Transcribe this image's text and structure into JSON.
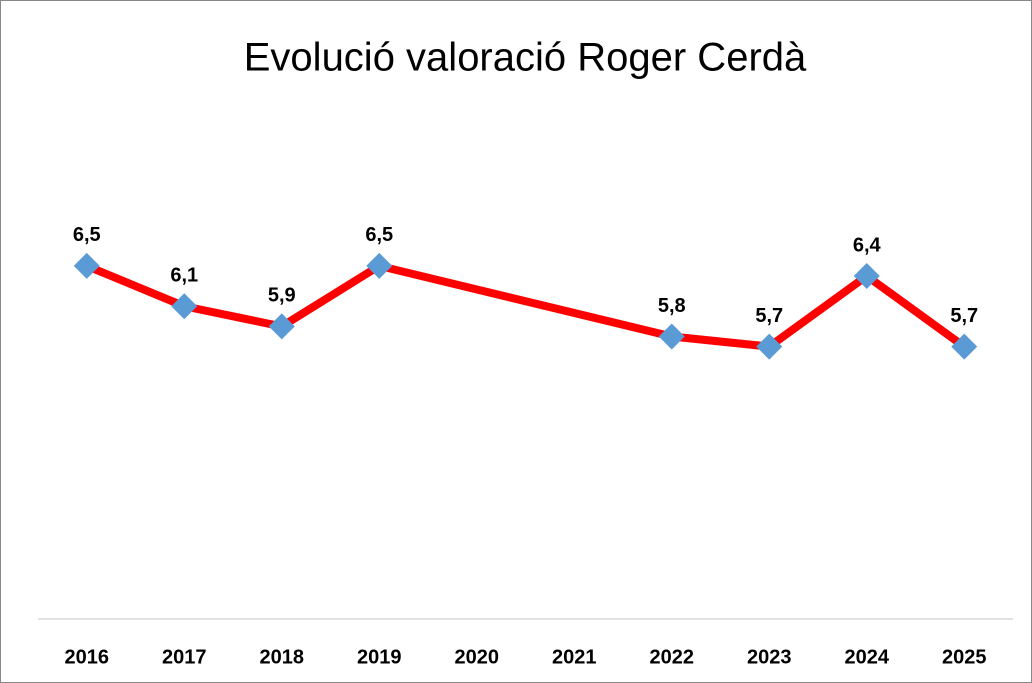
{
  "chart_data": {
    "type": "line",
    "title": "Evolució valoració Roger Cerdà",
    "categories": [
      "2016",
      "2017",
      "2018",
      "2019",
      "2020",
      "2021",
      "2022",
      "2023",
      "2024",
      "2025"
    ],
    "series": [
      {
        "color": "#ff0000",
        "marker_color": "#5b9bd5",
        "values": [
          6.5,
          6.1,
          5.9,
          6.5,
          null,
          null,
          5.8,
          5.7,
          6.4,
          5.7
        ],
        "value_labels": [
          "6,5",
          "6,1",
          "5,9",
          "6,5",
          null,
          null,
          "5,8",
          "5,7",
          "6,4",
          "5,7"
        ]
      }
    ],
    "connect_gaps": true,
    "ylim": [
      3,
      7.5
    ]
  }
}
